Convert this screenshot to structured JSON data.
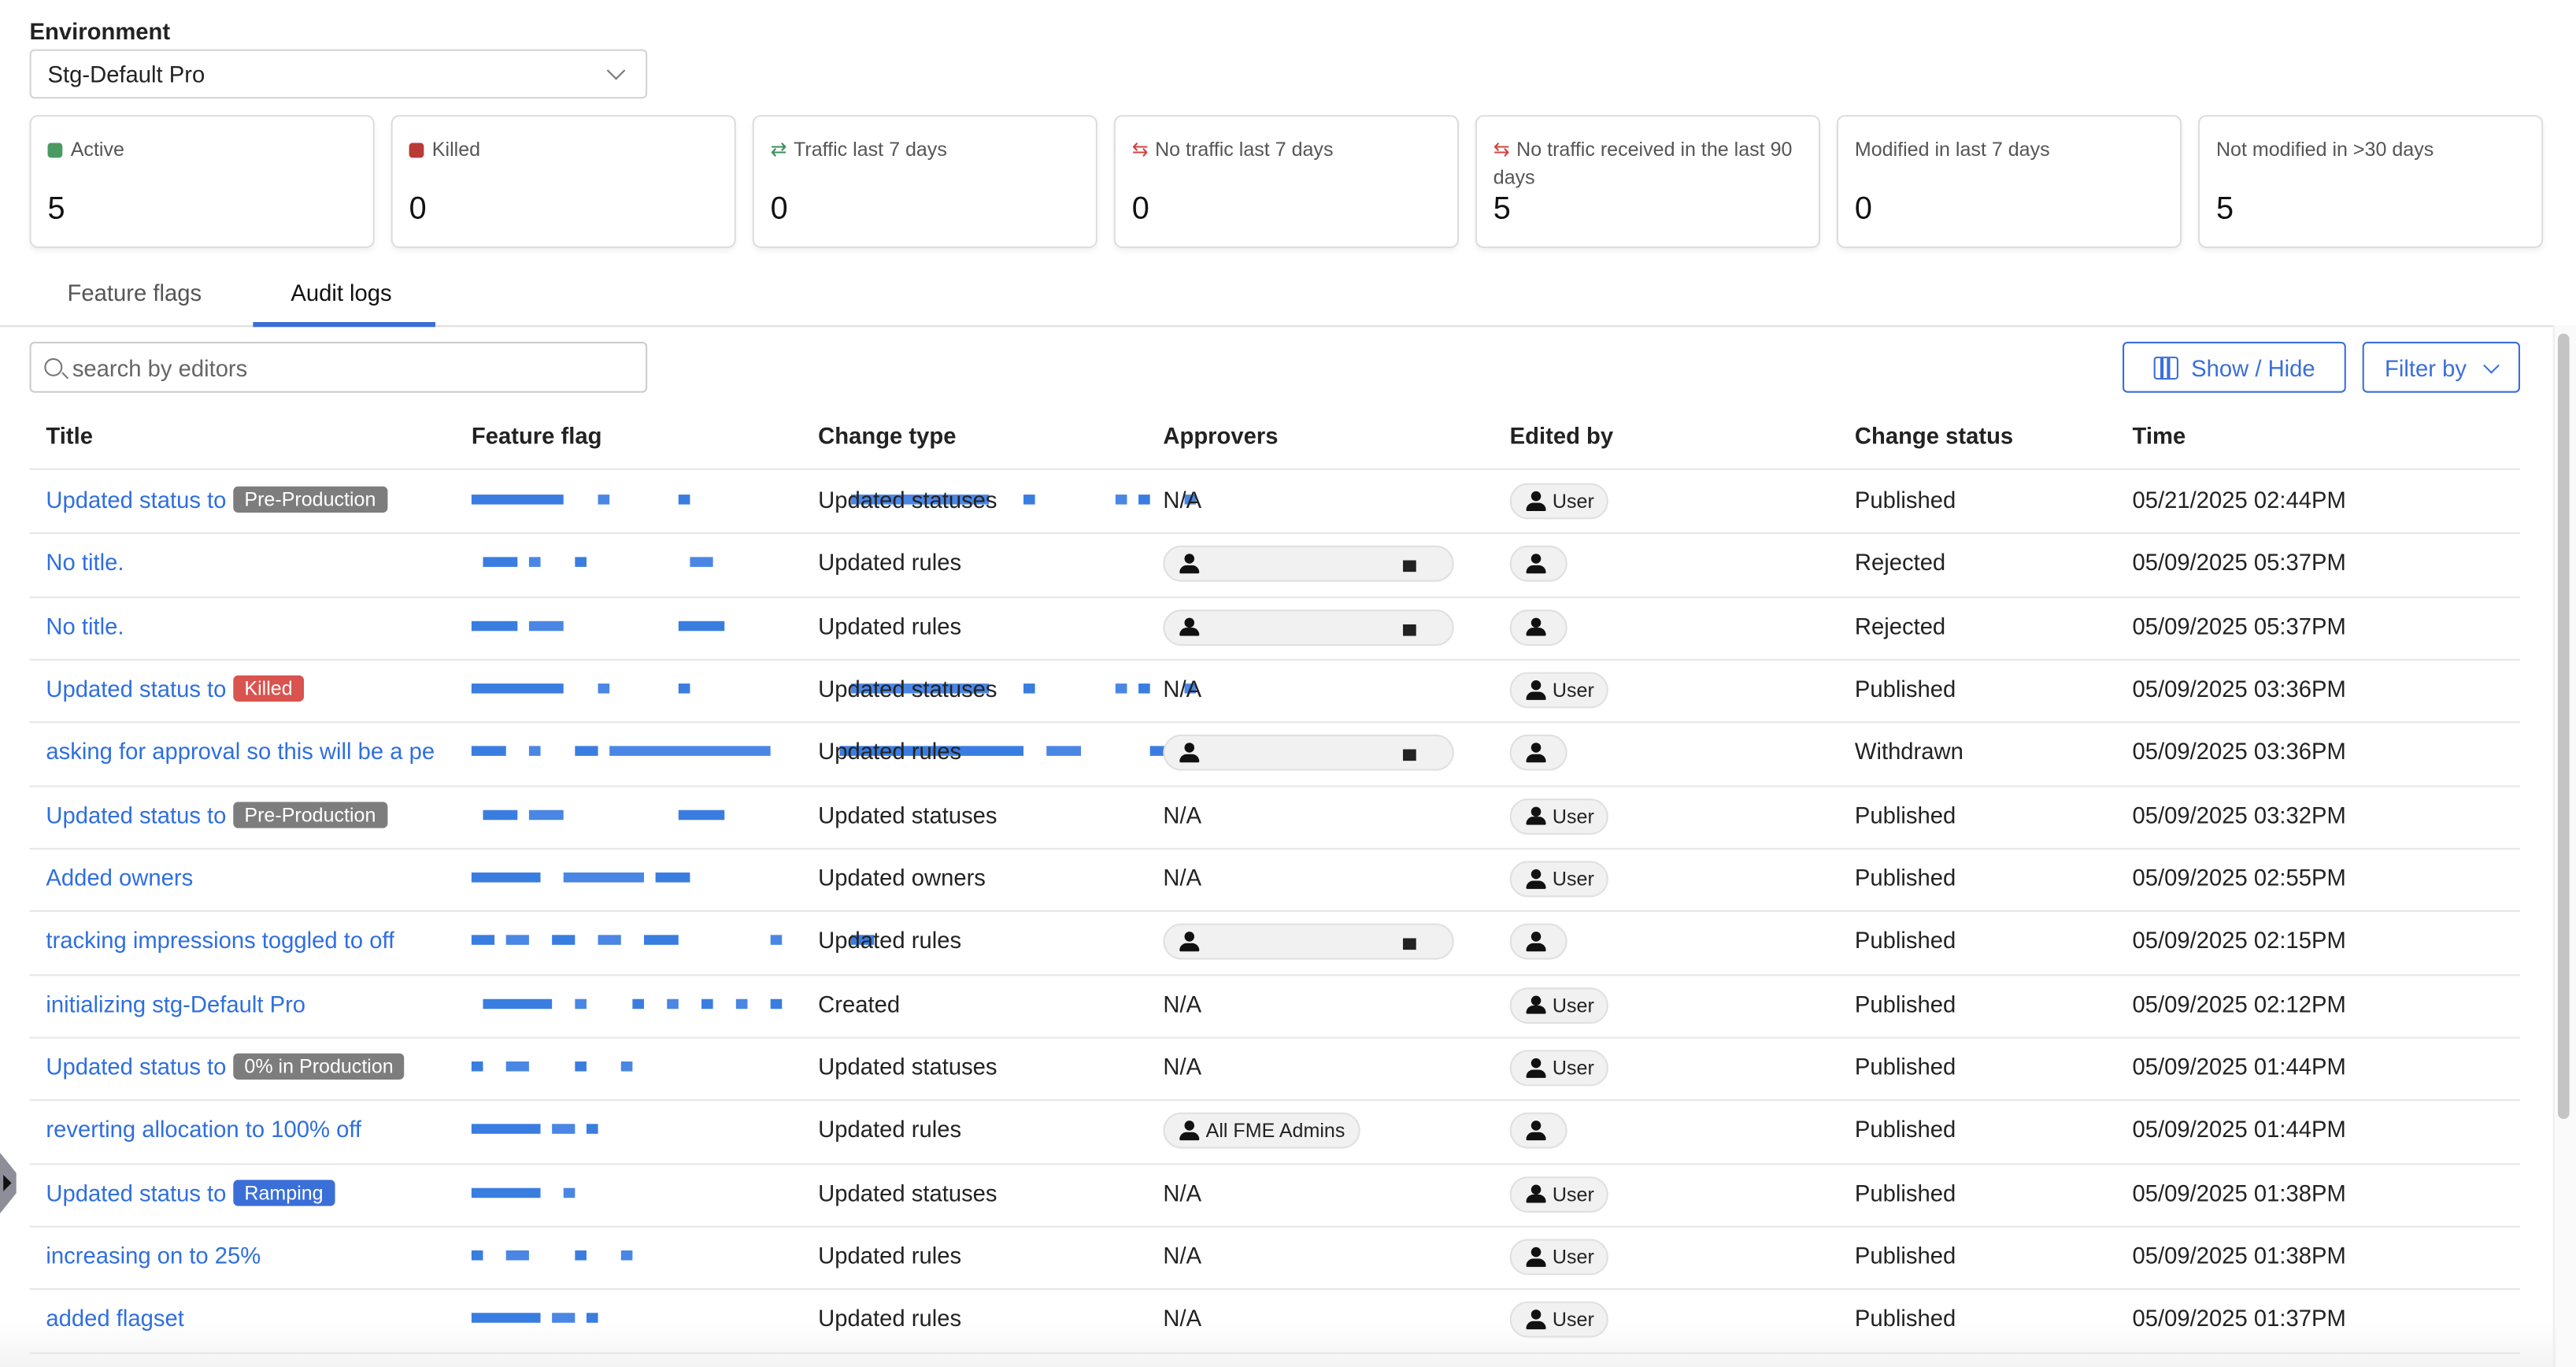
{
  "environment": {
    "label": "Environment",
    "selected": "Stg-Default Pro"
  },
  "cards": [
    {
      "label": "Active",
      "value": "5",
      "icon": "status-square",
      "color": "#4a9a62"
    },
    {
      "label": "Killed",
      "value": "0",
      "icon": "status-square",
      "color": "#b93a36"
    },
    {
      "label": "Traffic last 7 days",
      "value": "0",
      "icon": "traffic-arrows",
      "color": "#3b8f5a"
    },
    {
      "label": "No traffic last 7 days",
      "value": "0",
      "icon": "no-traffic-arrows",
      "color": "#d0443e"
    },
    {
      "label": "No traffic received in the last 90 days",
      "value": "5",
      "icon": "no-traffic-arrows",
      "color": "#d0443e"
    },
    {
      "label": "Modified in last 7 days",
      "value": "0"
    },
    {
      "label": "Not modified in >30 days",
      "value": "5"
    }
  ],
  "tabs": [
    {
      "label": "Feature flags"
    },
    {
      "label": "Audit logs",
      "active": true
    }
  ],
  "search": {
    "placeholder": "search by editors"
  },
  "toolbar": {
    "show_hide": "Show / Hide",
    "filter_by": "Filter by"
  },
  "colors": {
    "accent": "#3a6fd8",
    "link": "#2f6fde",
    "badge_gray": "#7d7d7d",
    "badge_killed": "#d9534f",
    "badge_ramping": "#3a6fd8"
  },
  "table": {
    "columns": [
      "Title",
      "Feature flag",
      "Change type",
      "Approvers",
      "Edited by",
      "Change status",
      "Time"
    ],
    "rows": [
      {
        "title": "Updated status to",
        "badge": "Pre-Production",
        "badge_type": "gray",
        "change_type": "Updated statuses",
        "approvers": "N/A",
        "edited_by": "User",
        "status": "Published",
        "time": "05/21/2025 02:44PM"
      },
      {
        "title": "No title.",
        "change_type": "Updated rules",
        "approvers": "redacted",
        "edited_by": "",
        "status": "Rejected",
        "time": "05/09/2025 05:37PM"
      },
      {
        "title": "No title.",
        "change_type": "Updated rules",
        "approvers": "redacted",
        "edited_by": "",
        "status": "Rejected",
        "time": "05/09/2025 05:37PM"
      },
      {
        "title": "Updated status to",
        "badge": "Killed",
        "badge_type": "killed",
        "change_type": "Updated statuses",
        "approvers": "N/A",
        "edited_by": "User",
        "status": "Published",
        "time": "05/09/2025 03:36PM"
      },
      {
        "title": "asking for approval so this will be a pe",
        "change_type": "Updated rules",
        "approvers": "redacted",
        "edited_by": "",
        "status": "Withdrawn",
        "time": "05/09/2025 03:36PM"
      },
      {
        "title": "Updated status to",
        "badge": "Pre-Production",
        "badge_type": "gray",
        "change_type": "Updated statuses",
        "approvers": "N/A",
        "edited_by": "User",
        "status": "Published",
        "time": "05/09/2025 03:32PM"
      },
      {
        "title": "Added owners",
        "change_type": "Updated owners",
        "approvers": "N/A",
        "edited_by": "User",
        "status": "Published",
        "time": "05/09/2025 02:55PM"
      },
      {
        "title": "tracking impressions toggled to off",
        "change_type": "Updated rules",
        "approvers": "redacted",
        "edited_by": "",
        "status": "Published",
        "time": "05/09/2025 02:15PM"
      },
      {
        "title": "initializing stg-Default Pro",
        "change_type": "Created",
        "approvers": "N/A",
        "edited_by": "User",
        "status": "Published",
        "time": "05/09/2025 02:12PM"
      },
      {
        "title": "Updated status to",
        "badge": "0% in Production",
        "badge_type": "gray",
        "change_type": "Updated statuses",
        "approvers": "N/A",
        "edited_by": "User",
        "status": "Published",
        "time": "05/09/2025 01:44PM"
      },
      {
        "title": "reverting allocation to 100% off",
        "change_type": "Updated rules",
        "approvers": "All FME Admins",
        "approvers_group": true,
        "edited_by": "",
        "status": "Published",
        "time": "05/09/2025 01:44PM"
      },
      {
        "title": "Updated status to",
        "badge": "Ramping",
        "badge_type": "ramping",
        "change_type": "Updated statuses",
        "approvers": "N/A",
        "edited_by": "User",
        "status": "Published",
        "time": "05/09/2025 01:38PM"
      },
      {
        "title": "increasing on to 25%",
        "change_type": "Updated rules",
        "approvers": "N/A",
        "edited_by": "User",
        "status": "Published",
        "time": "05/09/2025 01:38PM"
      },
      {
        "title": "added flagset",
        "change_type": "Updated rules",
        "approvers": "N/A",
        "edited_by": "User",
        "status": "Published",
        "time": "05/09/2025 01:37PM"
      }
    ]
  }
}
